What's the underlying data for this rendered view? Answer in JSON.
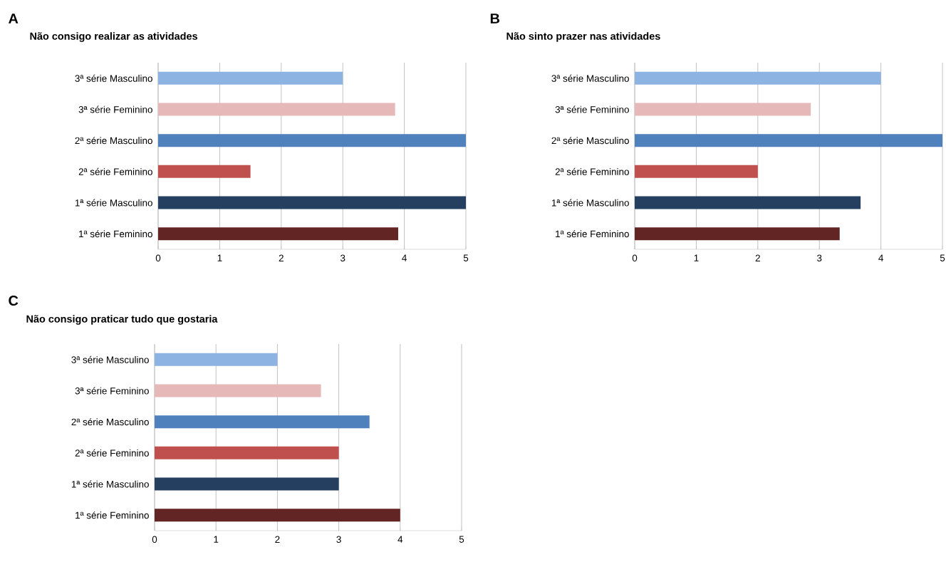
{
  "chart_data": [
    {
      "type": "bar",
      "orientation": "horizontal",
      "title": "Não consigo realizar as atividades",
      "annotations": [
        "A"
      ],
      "categories": [
        "3ª série Masculino",
        "3ª série Feminino",
        "2ª série Masculino",
        "2ª série Feminino",
        "1ª série Masculino",
        "1ª série Feminino"
      ],
      "values": [
        3.0,
        3.85,
        5.0,
        1.5,
        5.0,
        3.9
      ],
      "colors": [
        "#8db3e2",
        "#e6b9b8",
        "#4f81bd",
        "#c0504d",
        "#243f60",
        "#632523"
      ],
      "xlim": [
        0,
        5
      ],
      "xticks": [
        0,
        1,
        2,
        3,
        4,
        5
      ],
      "grid": "x"
    },
    {
      "type": "bar",
      "orientation": "horizontal",
      "title": "Não sinto prazer nas atividades",
      "annotations": [
        "B"
      ],
      "categories": [
        "3ª série Masculino",
        "3ª série Feminino",
        "2ª série Masculino",
        "2ª série Feminino",
        "1ª série Masculino",
        "1ª série Feminino"
      ],
      "values": [
        4.0,
        2.86,
        5.0,
        2.0,
        3.67,
        3.33
      ],
      "colors": [
        "#8db3e2",
        "#e6b9b8",
        "#4f81bd",
        "#c0504d",
        "#243f60",
        "#632523"
      ],
      "xlim": [
        0,
        5
      ],
      "xticks": [
        0,
        1,
        2,
        3,
        4,
        5
      ],
      "grid": "x"
    },
    {
      "type": "bar",
      "orientation": "horizontal",
      "title": "Não consigo praticar tudo que gostaria",
      "annotations": [
        "C"
      ],
      "categories": [
        "3ª série Masculino",
        "3ª série Feminino",
        "2ª série Masculino",
        "2ª série Feminino",
        "1ª série Masculino",
        "1ª série Feminino"
      ],
      "values": [
        2.0,
        2.71,
        3.5,
        3.0,
        3.0,
        4.0
      ],
      "colors": [
        "#8db3e2",
        "#e6b9b8",
        "#4f81bd",
        "#c0504d",
        "#243f60",
        "#632523"
      ],
      "xlim": [
        0,
        5
      ],
      "xticks": [
        0,
        1,
        2,
        3,
        4,
        5
      ],
      "grid": "x"
    }
  ]
}
